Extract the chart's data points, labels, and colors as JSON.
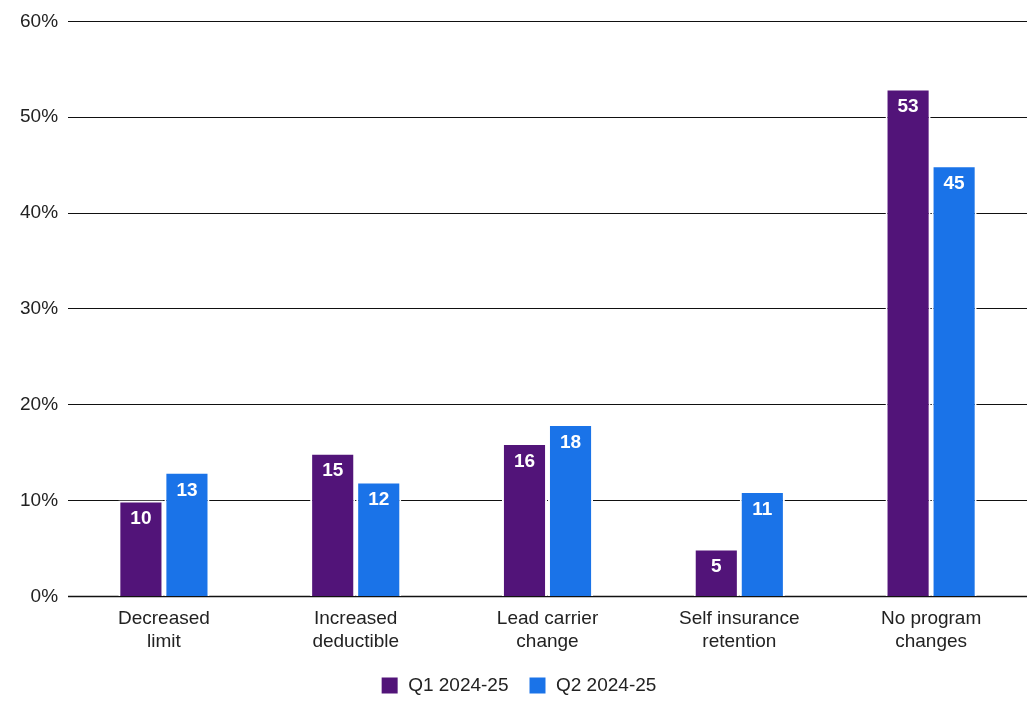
{
  "chart_data": {
    "type": "bar",
    "categories": [
      "Decreased limit",
      "Increased deductible",
      "Lead carrier change",
      "Self insurance retention",
      "No program changes"
    ],
    "series": [
      {
        "name": "Q1 2024-25",
        "color": "#521479",
        "values": [
          10,
          15,
          16,
          5,
          53
        ]
      },
      {
        "name": "Q2 2024-25",
        "color": "#1a73e8",
        "values": [
          13,
          12,
          18,
          11,
          45
        ]
      }
    ],
    "ylim": [
      0,
      60
    ],
    "yticks": [
      {
        "value": 0,
        "label": "0%"
      },
      {
        "value": 10,
        "label": "10%"
      },
      {
        "value": 20,
        "label": "20%"
      },
      {
        "value": 30,
        "label": "30%"
      },
      {
        "value": 40,
        "label": "40%"
      },
      {
        "value": 50,
        "label": "50%"
      },
      {
        "value": 60,
        "label": "60%"
      }
    ],
    "grid": "y",
    "legend": "bottom",
    "data_labels": true
  }
}
